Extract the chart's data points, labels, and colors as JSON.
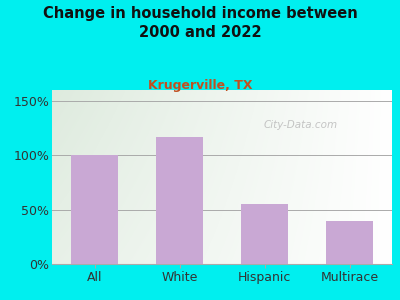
{
  "title": "Change in household income between\n2000 and 2022",
  "subtitle": "Krugerville, TX",
  "categories": [
    "All",
    "White",
    "Hispanic",
    "Multirace"
  ],
  "values": [
    100,
    117,
    55,
    40
  ],
  "bar_color": "#c9a8d4",
  "title_color": "#111111",
  "subtitle_color": "#c05020",
  "bg_color": "#00efef",
  "yticks": [
    0,
    50,
    100,
    150
  ],
  "ylim": [
    0,
    160
  ],
  "watermark": "City-Data.com"
}
